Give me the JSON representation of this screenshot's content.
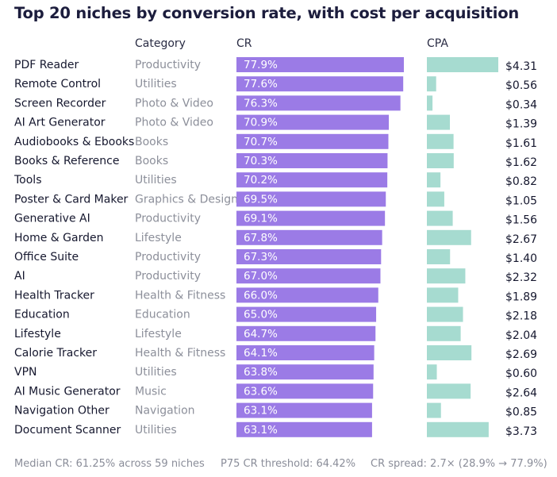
{
  "title": "Top 20 niches by conversion rate, with cost per acquisition",
  "headers": {
    "category": "Category",
    "cr": "CR",
    "cpa": "CPA"
  },
  "colors": {
    "cr_bar": "#9b7be6",
    "cpa_bar": "#a6dbd0",
    "label": "#15172e",
    "category": "#8c8f9a",
    "value_text": "#ffffff"
  },
  "chart_data": {
    "type": "bar",
    "title": "Top 20 niches by conversion rate, with cost per acquisition",
    "categories": [
      "PDF Reader",
      "Remote Control",
      "Screen Recorder",
      "AI Art Generator",
      "Audiobooks & Ebooks",
      "Books & Reference",
      "Tools",
      "Poster & Card Maker",
      "Generative AI",
      "Home & Garden",
      "Office Suite",
      "AI",
      "Health Tracker",
      "Education",
      "Lifestyle",
      "Calorie Tracker",
      "VPN",
      "AI Music Generator",
      "Navigation Other",
      "Document Scanner"
    ],
    "category_groups": [
      "Productivity",
      "Utilities",
      "Photo & Video",
      "Photo & Video",
      "Books",
      "Books",
      "Utilities",
      "Graphics & Design",
      "Productivity",
      "Lifestyle",
      "Productivity",
      "Productivity",
      "Health & Fitness",
      "Education",
      "Lifestyle",
      "Health & Fitness",
      "Utilities",
      "Music",
      "Navigation",
      "Utilities"
    ],
    "series": [
      {
        "name": "CR",
        "values": [
          77.9,
          77.6,
          76.3,
          70.9,
          70.7,
          70.3,
          70.2,
          69.5,
          69.1,
          67.8,
          67.3,
          67.0,
          66.0,
          65.0,
          64.7,
          64.1,
          63.8,
          63.6,
          63.1,
          63.1
        ],
        "labels": [
          "77.9%",
          "77.6%",
          "76.3%",
          "70.9%",
          "70.7%",
          "70.3%",
          "70.2%",
          "69.5%",
          "69.1%",
          "67.8%",
          "67.3%",
          "67.0%",
          "66.0%",
          "65.0%",
          "64.7%",
          "64.1%",
          "63.8%",
          "63.6%",
          "63.1%",
          "63.1%"
        ]
      },
      {
        "name": "CPA",
        "values": [
          4.31,
          0.56,
          0.34,
          1.39,
          1.61,
          1.62,
          0.82,
          1.05,
          1.56,
          2.67,
          1.4,
          2.32,
          1.89,
          2.18,
          2.04,
          2.69,
          0.6,
          2.64,
          0.85,
          3.73
        ],
        "labels": [
          "$4.31",
          "$0.56",
          "$0.34",
          "$1.39",
          "$1.61",
          "$1.62",
          "$0.82",
          "$1.05",
          "$1.56",
          "$2.67",
          "$1.40",
          "$2.32",
          "$1.89",
          "$2.18",
          "$2.04",
          "$2.69",
          "$0.60",
          "$2.64",
          "$0.85",
          "$3.73"
        ]
      }
    ],
    "cr_range": [
      0,
      77.9
    ],
    "cpa_range": [
      0,
      4.31
    ],
    "grid": false,
    "legend": "none"
  },
  "footer": {
    "median": "Median CR: 61.25% across 59 niches",
    "p75": "P75 CR threshold: 64.42%",
    "spread": "CR spread: 2.7× (28.9% → 77.9%)"
  }
}
